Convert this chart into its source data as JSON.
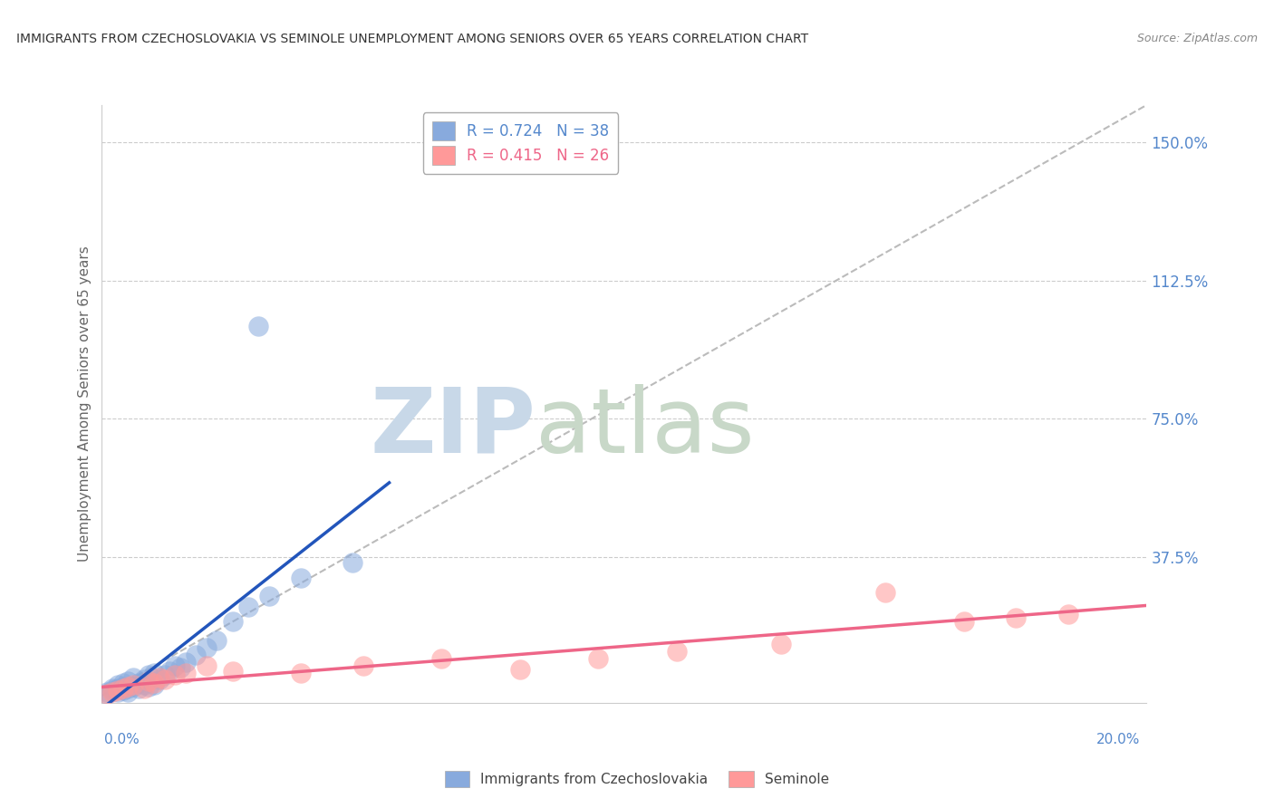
{
  "title": "IMMIGRANTS FROM CZECHOSLOVAKIA VS SEMINOLE UNEMPLOYMENT AMONG SENIORS OVER 65 YEARS CORRELATION CHART",
  "source": "Source: ZipAtlas.com",
  "xlabel_bottom_left": "0.0%",
  "xlabel_bottom_right": "20.0%",
  "ylabel": "Unemployment Among Seniors over 65 years",
  "ytick_labels": [
    "37.5%",
    "75.0%",
    "112.5%",
    "150.0%"
  ],
  "ytick_values": [
    0.375,
    0.75,
    1.125,
    1.5
  ],
  "xlim": [
    0.0,
    0.2
  ],
  "ylim": [
    -0.02,
    1.6
  ],
  "legend_R1": "R = 0.724",
  "legend_N1": "N = 38",
  "legend_R2": "R = 0.415",
  "legend_N2": "N = 26",
  "legend_label1": "Immigrants from Czechoslovakia",
  "legend_label2": "Seminole",
  "color_blue": "#88AADD",
  "color_pink": "#FF9999",
  "color_line_blue": "#2255BB",
  "color_line_pink": "#EE6688",
  "color_diag": "#BBBBBB",
  "watermark_zip": "ZIP",
  "watermark_atlas": "atlas",
  "watermark_color_zip": "#C8D8E8",
  "watermark_color_atlas": "#C8D8C8",
  "title_color": "#333333",
  "source_color": "#888888",
  "tick_color": "#5588CC",
  "blue_x": [
    0.001,
    0.001,
    0.002,
    0.002,
    0.003,
    0.003,
    0.003,
    0.004,
    0.004,
    0.004,
    0.005,
    0.005,
    0.005,
    0.006,
    0.006,
    0.007,
    0.007,
    0.008,
    0.008,
    0.009,
    0.009,
    0.01,
    0.01,
    0.011,
    0.012,
    0.013,
    0.014,
    0.015,
    0.016,
    0.018,
    0.02,
    0.022,
    0.025,
    0.028,
    0.032,
    0.038,
    0.048,
    0.03
  ],
  "blue_y": [
    0.005,
    0.01,
    0.015,
    0.02,
    0.01,
    0.02,
    0.03,
    0.015,
    0.025,
    0.035,
    0.01,
    0.02,
    0.04,
    0.025,
    0.05,
    0.02,
    0.035,
    0.03,
    0.045,
    0.025,
    0.055,
    0.03,
    0.06,
    0.045,
    0.055,
    0.065,
    0.08,
    0.075,
    0.09,
    0.11,
    0.13,
    0.15,
    0.2,
    0.24,
    0.27,
    0.32,
    0.36,
    1.0
  ],
  "pink_x": [
    0.001,
    0.002,
    0.003,
    0.004,
    0.005,
    0.006,
    0.008,
    0.009,
    0.01,
    0.011,
    0.012,
    0.014,
    0.016,
    0.02,
    0.025,
    0.038,
    0.05,
    0.065,
    0.08,
    0.095,
    0.11,
    0.13,
    0.15,
    0.165,
    0.175,
    0.185
  ],
  "pink_y": [
    0.005,
    0.01,
    0.015,
    0.02,
    0.025,
    0.03,
    0.02,
    0.04,
    0.035,
    0.05,
    0.045,
    0.055,
    0.06,
    0.08,
    0.065,
    0.06,
    0.08,
    0.1,
    0.07,
    0.1,
    0.12,
    0.14,
    0.28,
    0.2,
    0.21,
    0.22
  ]
}
